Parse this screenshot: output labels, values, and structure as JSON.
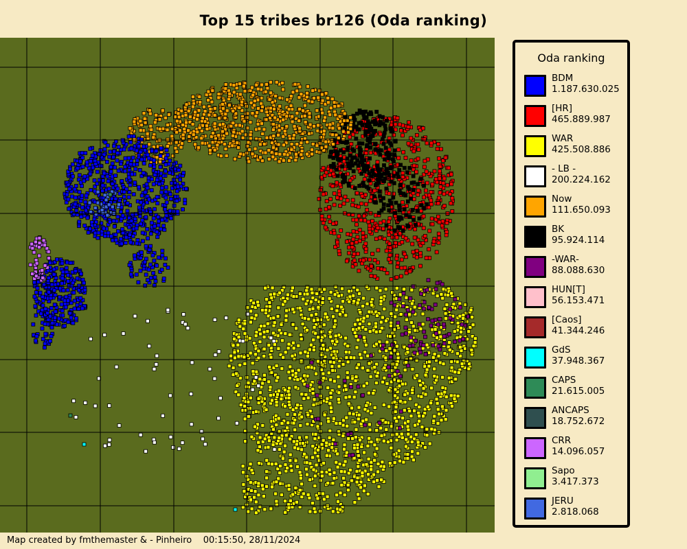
{
  "title": "Top 15 tribes br126 (Oda ranking)",
  "legend": {
    "title": "Oda ranking",
    "items": [
      {
        "name": "BDM",
        "value": "1.187.630.025",
        "color": "#0000ff"
      },
      {
        "name": "[HR]",
        "value": "465.889.987",
        "color": "#ff0000"
      },
      {
        "name": "WAR",
        "value": "425.508.886",
        "color": "#ffff00"
      },
      {
        "name": "- LB -",
        "value": "200.224.162",
        "color": "#ffffff"
      },
      {
        "name": "Now",
        "value": "111.650.093",
        "color": "#ffa500"
      },
      {
        "name": "BK",
        "value": "95.924.114",
        "color": "#000000"
      },
      {
        "name": "-WAR-",
        "value": "88.088.630",
        "color": "#800080"
      },
      {
        "name": "HUN[T]",
        "value": "56.153.471",
        "color": "#ffc0cb"
      },
      {
        "name": "[Caos]",
        "value": "41.344.246",
        "color": "#a52a2a"
      },
      {
        "name": "GdS",
        "value": "37.948.367",
        "color": "#00ffff"
      },
      {
        "name": "CAPS",
        "value": "21.615.005",
        "color": "#2e8b57"
      },
      {
        "name": "ANCAPS",
        "value": "18.752.672",
        "color": "#2f4f4f"
      },
      {
        "name": "CRR",
        "value": "14.096.057",
        "color": "#cc66ff"
      },
      {
        "name": "Sapo",
        "value": "3.417.373",
        "color": "#90ee90"
      },
      {
        "name": "JERU",
        "value": "2.818.068",
        "color": "#4169e1"
      }
    ]
  },
  "footer": {
    "credit": "Map created by fmthemaster & - Pinheiro",
    "timestamp": "00:15:50, 28/11/2024"
  },
  "map": {
    "background_color": "#5a6b1e",
    "grid_color": "#000000"
  }
}
